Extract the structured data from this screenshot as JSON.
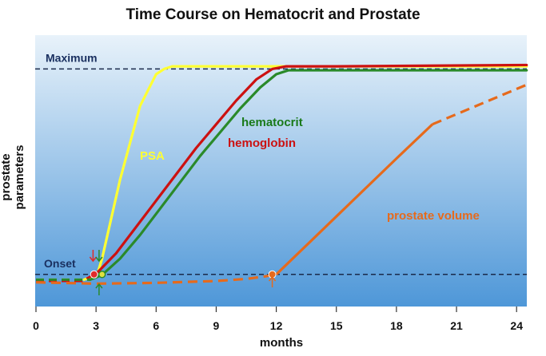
{
  "chart_data": {
    "type": "line",
    "title": "Time Course on Hematocrit and Prostate",
    "xlabel": "months",
    "ylabel": "prostate parameters",
    "xlim": [
      0,
      24
    ],
    "ylim": [
      0,
      100
    ],
    "x_ticks": [
      0,
      3,
      6,
      9,
      12,
      15,
      18,
      21,
      24
    ],
    "y_ticks": [],
    "grid": false,
    "legend": "none",
    "reference_lines": [
      {
        "label": "Maximum",
        "y": 92
      },
      {
        "label": "Onset",
        "y": 14
      }
    ],
    "series": [
      {
        "name": "PSA",
        "color": "#ffff33",
        "x": [
          0,
          2.4,
          2.9,
          3.1,
          3.3,
          4.2,
          5.2,
          6.0,
          6.4,
          6.8,
          7.5,
          12,
          24.5
        ],
        "y": [
          12,
          12,
          13.5,
          15,
          20,
          50,
          78,
          90,
          92,
          93,
          93,
          93,
          93
        ]
      },
      {
        "name": "hemoglobin",
        "color": "#cc1111",
        "x": [
          0,
          2.3,
          2.8,
          3.1,
          4.0,
          5.0,
          6.0,
          7.0,
          8.0,
          9.0,
          10.0,
          11.0,
          11.8,
          12.5,
          15,
          24.5
        ],
        "y": [
          11.5,
          11.5,
          13.5,
          15,
          22,
          32,
          42,
          52,
          62,
          71,
          80,
          88,
          92,
          93,
          93,
          93.5
        ]
      },
      {
        "name": "hematocrit",
        "color": "#2a8a2a",
        "x": [
          0,
          2.7,
          3.2,
          3.4,
          4.2,
          5.2,
          6.2,
          7.2,
          8.2,
          9.2,
          10.2,
          11.2,
          12.0,
          12.6,
          15,
          24.5
        ],
        "y": [
          12,
          12,
          13.5,
          14.5,
          20,
          29,
          39,
          49,
          59,
          68,
          77,
          85,
          90,
          91.5,
          91.5,
          91.5
        ]
      },
      {
        "name": "prostate volume",
        "color": "#e66a1c",
        "x": [
          0,
          3,
          6,
          9,
          10.5,
          11.4,
          12,
          15,
          18,
          19.8,
          24.5
        ],
        "y": [
          11,
          10.5,
          10.8,
          11.5,
          12.3,
          13.2,
          14,
          36,
          58,
          71,
          86
        ]
      }
    ],
    "annotations": [
      {
        "text": "PSA",
        "color": "#ffff33"
      },
      {
        "text": "hematocrit",
        "color": "#1a7a1a"
      },
      {
        "text": "hemoglobin",
        "color": "#cc1111"
      },
      {
        "text": "prostate volume",
        "color": "#e66a1c"
      }
    ],
    "colors": {
      "panel_top": "#e8f2fa",
      "panel_bottom": "#4e97d8",
      "reference_line": "#1a2a4a"
    }
  }
}
